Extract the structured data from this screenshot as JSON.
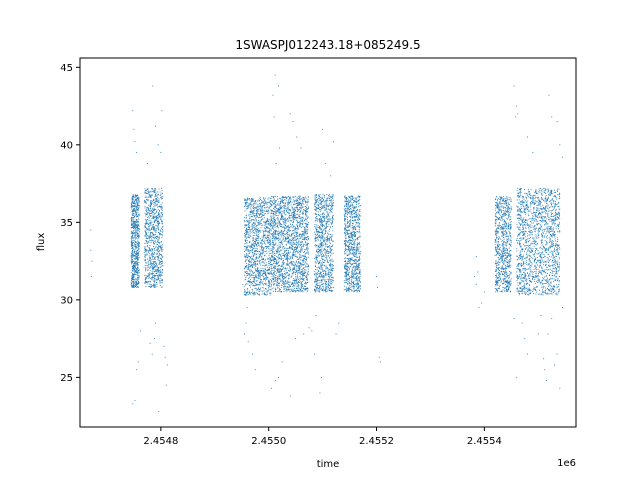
{
  "chart_data": {
    "type": "scatter",
    "title": "1SWASPJ012243.18+085249.5",
    "xlabel": "time",
    "ylabel": "flux",
    "x_offset_label": "1e6",
    "x_tick_labels": [
      "2.4548",
      "2.4550",
      "2.4552",
      "2.4554"
    ],
    "x_ticks": [
      2454800,
      2455000,
      2455200,
      2455400
    ],
    "y_tick_labels": [
      "25",
      "30",
      "35",
      "40",
      "45"
    ],
    "y_ticks": [
      25,
      30,
      35,
      40,
      45
    ],
    "xlim": [
      2454650,
      2455570
    ],
    "ylim": [
      21.8,
      45.6
    ],
    "grid": false,
    "marker_color": "#1f77b4",
    "series": [
      {
        "segments": [
          {
            "x_start": 2454745,
            "x_end": 2454760,
            "y_low": 30.8,
            "y_high": 36.8,
            "points": 700
          },
          {
            "x_start": 2454770,
            "x_end": 2454804,
            "y_low": 30.8,
            "y_high": 37.2,
            "points": 900
          },
          {
            "x_start": 2454955,
            "x_end": 2455005,
            "y_low": 30.3,
            "y_high": 36.6,
            "points": 1200
          },
          {
            "x_start": 2455005,
            "x_end": 2455074,
            "y_low": 30.5,
            "y_high": 36.7,
            "points": 1800
          },
          {
            "x_start": 2455085,
            "x_end": 2455120,
            "y_low": 30.5,
            "y_high": 36.8,
            "points": 900
          },
          {
            "x_start": 2455140,
            "x_end": 2455170,
            "y_low": 30.5,
            "y_high": 36.7,
            "points": 900
          },
          {
            "x_start": 2455420,
            "x_end": 2455450,
            "y_low": 30.5,
            "y_high": 36.7,
            "points": 800
          },
          {
            "x_start": 2455460,
            "x_end": 2455540,
            "y_low": 30.3,
            "y_high": 37.2,
            "points": 1600
          }
        ],
        "sparse_points": [
          [
            2454670,
            34.5
          ],
          [
            2454670,
            33.2
          ],
          [
            2454672,
            32.5
          ],
          [
            2454671,
            31.5
          ],
          [
            2454748,
            42.2
          ],
          [
            2454750,
            41.0
          ],
          [
            2454752,
            40.2
          ],
          [
            2454755,
            39.5
          ],
          [
            2454748,
            23.3
          ],
          [
            2454752,
            23.5
          ],
          [
            2454755,
            25.5
          ],
          [
            2454758,
            26.0
          ],
          [
            2454762,
            28.0
          ],
          [
            2454780,
            27.2
          ],
          [
            2454784,
            26.5
          ],
          [
            2454790,
            28.5
          ],
          [
            2454790,
            41.2
          ],
          [
            2454795,
            40.0
          ],
          [
            2454800,
            39.5
          ],
          [
            2454785,
            43.8
          ],
          [
            2454775,
            38.8
          ],
          [
            2454802,
            42.2
          ],
          [
            2454806,
            27.0
          ],
          [
            2454808,
            26.3
          ],
          [
            2454810,
            24.5
          ],
          [
            2454812,
            25.8
          ],
          [
            2454796,
            22.8
          ],
          [
            2454788,
            27.5
          ],
          [
            2454955,
            27.8
          ],
          [
            2454958,
            28.5
          ],
          [
            2454960,
            29.5
          ],
          [
            2454962,
            27.3
          ],
          [
            2454955,
            32.0
          ],
          [
            2454952,
            31.0
          ],
          [
            2454970,
            26.5
          ],
          [
            2454975,
            25.5
          ],
          [
            2455005,
            24.3
          ],
          [
            2455012,
            24.8
          ],
          [
            2455018,
            25.0
          ],
          [
            2455025,
            26.0
          ],
          [
            2455008,
            43.2
          ],
          [
            2455010,
            41.8
          ],
          [
            2455012,
            44.5
          ],
          [
            2455018,
            43.8
          ],
          [
            2455020,
            39.8
          ],
          [
            2455014,
            38.8
          ],
          [
            2455040,
            42.0
          ],
          [
            2455045,
            41.5
          ],
          [
            2455052,
            40.5
          ],
          [
            2455060,
            39.8
          ],
          [
            2455080,
            28.0
          ],
          [
            2455085,
            26.5
          ],
          [
            2455088,
            29.0
          ],
          [
            2455040,
            23.8
          ],
          [
            2455095,
            24.0
          ],
          [
            2455098,
            25.0
          ],
          [
            2455100,
            41.0
          ],
          [
            2455105,
            38.8
          ],
          [
            2455120,
            40.2
          ],
          [
            2455115,
            38.0
          ],
          [
            2455125,
            27.8
          ],
          [
            2455130,
            28.5
          ],
          [
            2455050,
            27.5
          ],
          [
            2455065,
            27.8
          ],
          [
            2455075,
            28.2
          ],
          [
            2455200,
            31.5
          ],
          [
            2455202,
            30.8
          ],
          [
            2455205,
            26.3
          ],
          [
            2455207,
            26.0
          ],
          [
            2455382,
            31.5
          ],
          [
            2455385,
            32.8
          ],
          [
            2455388,
            31.8
          ],
          [
            2455385,
            31.0
          ],
          [
            2455400,
            30.5
          ],
          [
            2455395,
            29.8
          ],
          [
            2455390,
            29.5
          ],
          [
            2455455,
            43.8
          ],
          [
            2455460,
            42.5
          ],
          [
            2455462,
            42.0
          ],
          [
            2455458,
            41.8
          ],
          [
            2455520,
            43.2
          ],
          [
            2455525,
            41.8
          ],
          [
            2455480,
            40.5
          ],
          [
            2455490,
            39.5
          ],
          [
            2455535,
            41.5
          ],
          [
            2455540,
            40.0
          ],
          [
            2455545,
            39.2
          ],
          [
            2455470,
            28.5
          ],
          [
            2455475,
            27.5
          ],
          [
            2455480,
            26.5
          ],
          [
            2455500,
            27.8
          ],
          [
            2455510,
            26.2
          ],
          [
            2455512,
            25.5
          ],
          [
            2455518,
            27.8
          ],
          [
            2455525,
            28.8
          ],
          [
            2455530,
            25.8
          ],
          [
            2455540,
            24.3
          ],
          [
            2455545,
            29.5
          ],
          [
            2455455,
            28.8
          ],
          [
            2455460,
            25.0
          ],
          [
            2455505,
            29.0
          ],
          [
            2455515,
            24.8
          ],
          [
            2455535,
            26.5
          ]
        ]
      }
    ]
  }
}
